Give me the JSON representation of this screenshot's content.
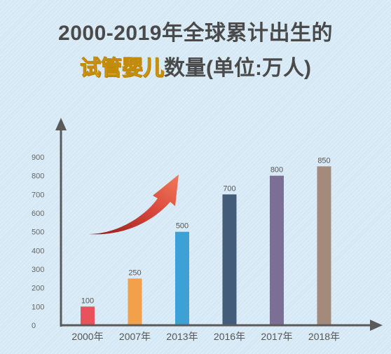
{
  "title": {
    "line1": "2000-2019年全球累计出生的",
    "line2_highlight": "试管婴儿",
    "line2_rest": "数量(单位:万人)"
  },
  "colors": {
    "highlight": "#f7c520",
    "axis": "#5a5a5a",
    "arrow": "#d9473a"
  },
  "chart_data": {
    "type": "bar",
    "categories": [
      "2000年",
      "2007年",
      "2013年",
      "2016年",
      "2017年",
      "2018年"
    ],
    "values": [
      100,
      250,
      500,
      700,
      800,
      850
    ],
    "colors": [
      "#e8525a",
      "#f2a04a",
      "#3ea1d5",
      "#425c79",
      "#7b6f96",
      "#a38a7a"
    ],
    "ylim": [
      0,
      900
    ],
    "yticks": [
      0,
      100,
      200,
      300,
      400,
      500,
      600,
      700,
      800,
      900
    ],
    "grid": false,
    "data_labels": true
  }
}
